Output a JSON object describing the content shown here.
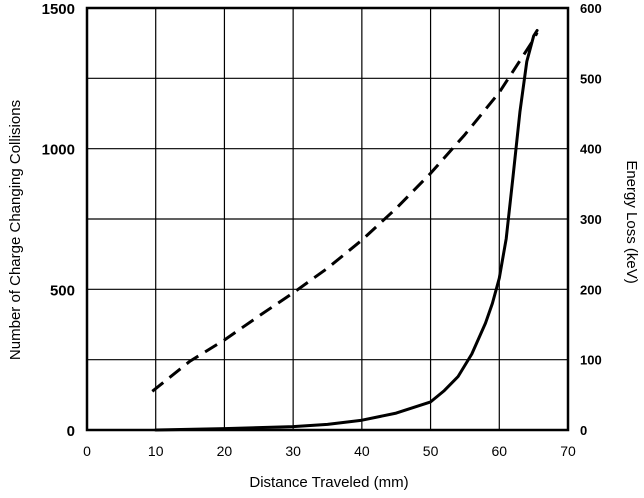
{
  "chart_data": {
    "type": "line",
    "title": "",
    "xlabel": "Distance Traveled (mm)",
    "ylabel_left": "Number of Charge Changing Collisions",
    "ylabel_right": "Energy Loss (keV)",
    "xlim": [
      0,
      70
    ],
    "ylim_left": [
      0,
      1500
    ],
    "ylim_right": [
      0,
      600
    ],
    "x_ticks": [
      0,
      10,
      20,
      30,
      40,
      50,
      60,
      70
    ],
    "y_ticks_left": [
      0,
      500,
      1000,
      1500
    ],
    "y_ticks_right": [
      0,
      100,
      200,
      300,
      400,
      500,
      600
    ],
    "grid": true,
    "series": [
      {
        "axis": "left",
        "style": "solid",
        "x": [
          10,
          20,
          30,
          35,
          40,
          45,
          50,
          52,
          54,
          56,
          58,
          59,
          60,
          61,
          62,
          63,
          64,
          65,
          65.5
        ],
        "y": [
          0,
          5,
          12,
          20,
          35,
          60,
          100,
          140,
          190,
          270,
          380,
          450,
          540,
          680,
          900,
          1130,
          1310,
          1400,
          1420
        ]
      },
      {
        "axis": "right",
        "style": "dashed",
        "x": [
          9.5,
          15,
          20,
          25,
          30,
          35,
          40,
          45,
          50,
          55,
          60,
          65,
          65.5
        ],
        "y": [
          55,
          98,
          128,
          162,
          195,
          230,
          270,
          315,
          365,
          420,
          480,
          555,
          565
        ]
      }
    ]
  }
}
